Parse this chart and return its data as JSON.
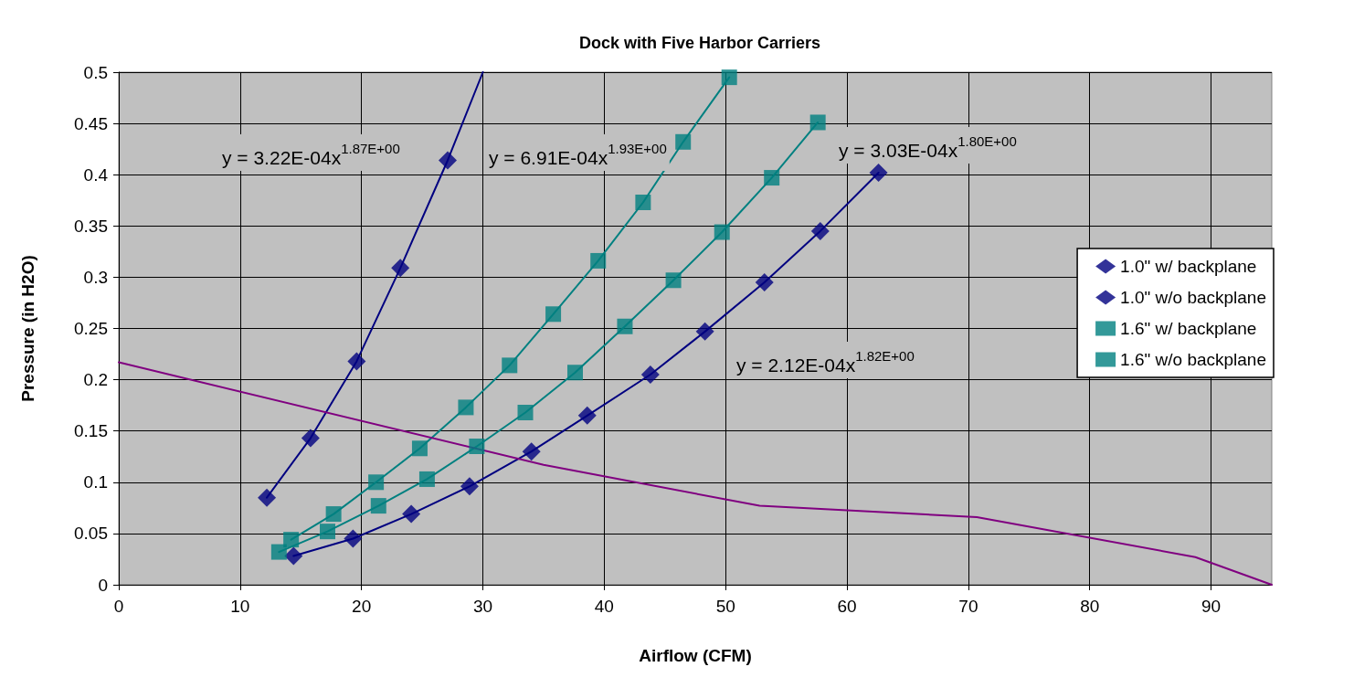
{
  "chart_data": {
    "type": "scatter",
    "title": "Dock with Five Harbor Carriers",
    "xlabel": "Airflow (CFM)",
    "ylabel": "Pressure (in H2O)",
    "xlim": [
      0,
      95
    ],
    "xticks": [
      0,
      10,
      20,
      30,
      40,
      50,
      60,
      70,
      80,
      90
    ],
    "ylim": [
      0,
      0.5
    ],
    "yticks": [
      0,
      0.05,
      0.1,
      0.15,
      0.2,
      0.25,
      0.3,
      0.35,
      0.4,
      0.45,
      0.5
    ],
    "grid": true,
    "legend": "right",
    "annotations": [
      "y = 3.22E-04x$^{1.87E+00}$",
      "y = 6.91E-04x$^{1.93E+00}$",
      "y = 3.03E-04x$^{1.80E+00}$",
      "y = 2.12E-04x$^{1.82E+00}$"
    ],
    "series": [
      {
        "name": "1.0\" w/ backplane",
        "type": "scatter",
        "marker": "diamond",
        "color": "#000080",
        "x": [
          12.2,
          15.8,
          19.6,
          23.2,
          27.1
        ],
        "values": [
          0.085,
          0.143,
          0.218,
          0.309,
          0.414
        ]
      },
      {
        "name": "1.0\" w/o backplane",
        "type": "scatter",
        "marker": "diamond",
        "color": "#000080",
        "x": [
          14.4,
          19.3,
          24.1,
          28.9,
          34.0,
          38.6,
          43.8,
          48.3,
          53.2,
          57.8,
          62.6
        ],
        "values": [
          0.028,
          0.045,
          0.069,
          0.096,
          0.13,
          0.165,
          0.205,
          0.247,
          0.295,
          0.345,
          0.402
        ]
      },
      {
        "name": "1.6\" w/ backplane",
        "type": "scatter",
        "marker": "square",
        "color": "#008080",
        "x": [
          14.2,
          17.7,
          21.2,
          24.8,
          28.6,
          32.2,
          35.8,
          39.5,
          43.2,
          46.5,
          50.3
        ],
        "values": [
          0.044,
          0.069,
          0.1,
          0.133,
          0.173,
          0.214,
          0.264,
          0.316,
          0.373,
          0.432,
          0.495
        ]
      },
      {
        "name": "1.6\" w/o backplane",
        "type": "scatter",
        "marker": "square",
        "color": "#008080",
        "x": [
          13.2,
          17.2,
          21.4,
          25.4,
          29.5,
          33.5,
          37.6,
          41.7,
          45.7,
          49.7,
          53.8,
          57.6
        ],
        "values": [
          0.032,
          0.052,
          0.077,
          0.103,
          0.135,
          0.168,
          0.207,
          0.252,
          0.297,
          0.344,
          0.397,
          0.451
        ]
      },
      {
        "type": "line",
        "marker": "none",
        "color": "#000080",
        "x": [
          12.2,
          15.8,
          19.6,
          23.2,
          27.1,
          30.0
        ],
        "values": [
          0.085,
          0.143,
          0.218,
          0.309,
          0.414,
          0.5
        ]
      },
      {
        "type": "line",
        "marker": "none",
        "color": "#000080",
        "x": [
          14.4,
          19.3,
          24.1,
          28.9,
          34.0,
          38.6,
          43.8,
          48.3,
          53.2,
          57.8,
          62.6
        ],
        "values": [
          0.028,
          0.045,
          0.069,
          0.096,
          0.13,
          0.165,
          0.205,
          0.247,
          0.295,
          0.345,
          0.402
        ]
      },
      {
        "type": "line",
        "marker": "none",
        "color": "#008080",
        "x": [
          14.2,
          17.7,
          21.2,
          24.8,
          28.6,
          32.2,
          35.8,
          39.5,
          43.2,
          46.5,
          50.3
        ],
        "values": [
          0.044,
          0.069,
          0.1,
          0.133,
          0.173,
          0.214,
          0.264,
          0.316,
          0.373,
          0.432,
          0.495
        ]
      },
      {
        "type": "line",
        "marker": "none",
        "color": "#008080",
        "x": [
          13.2,
          17.2,
          21.4,
          25.4,
          29.5,
          33.5,
          37.6,
          41.7,
          45.7,
          49.7,
          53.8,
          57.6
        ],
        "values": [
          0.032,
          0.052,
          0.077,
          0.103,
          0.135,
          0.168,
          0.207,
          0.252,
          0.297,
          0.344,
          0.397,
          0.451
        ]
      },
      {
        "type": "line",
        "marker": "none",
        "color": "#800080",
        "x": [
          0,
          35.0,
          52.8,
          70.7,
          88.7,
          95.0
        ],
        "values": [
          0.217,
          0.117,
          0.077,
          0.066,
          0.027,
          0
        ]
      }
    ]
  }
}
